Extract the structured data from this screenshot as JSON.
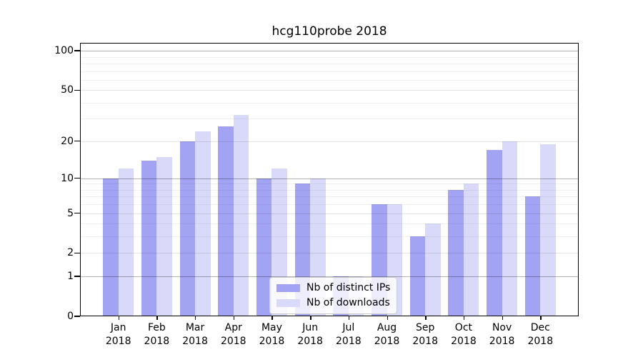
{
  "title": "hcg110probe 2018",
  "chart_data": {
    "type": "bar",
    "title": "hcg110probe 2018",
    "categories": [
      "Jan",
      "Feb",
      "Mar",
      "Apr",
      "May",
      "Jun",
      "Jul",
      "Aug",
      "Sep",
      "Oct",
      "Nov",
      "Dec"
    ],
    "category_year": "2018",
    "series": [
      {
        "name": "Nb of distinct IPs",
        "color": "#a3a3f3",
        "values": [
          10,
          14,
          20,
          26,
          10,
          9,
          1,
          6,
          3,
          8,
          17,
          7
        ]
      },
      {
        "name": "Nb of downloads",
        "color": "#d9d9fa",
        "values": [
          12,
          15,
          24,
          32,
          12,
          10,
          1,
          6,
          4,
          9,
          20,
          19
        ]
      }
    ],
    "xlabel": "",
    "ylabel": "",
    "yscale": "log1p",
    "ylim": [
      0,
      115
    ],
    "yticks": [
      0,
      1,
      2,
      5,
      10,
      20,
      50,
      100
    ],
    "yticks_minor": [
      3,
      4,
      6,
      7,
      8,
      9,
      30,
      40,
      60,
      70,
      80,
      90
    ],
    "grid": true,
    "legend_position": "lower-center"
  },
  "colors": {
    "background": "#ffffff",
    "axis": "#000000",
    "bar_distinct_ips": "#a3a3f3",
    "bar_downloads": "#d9d9fa"
  }
}
